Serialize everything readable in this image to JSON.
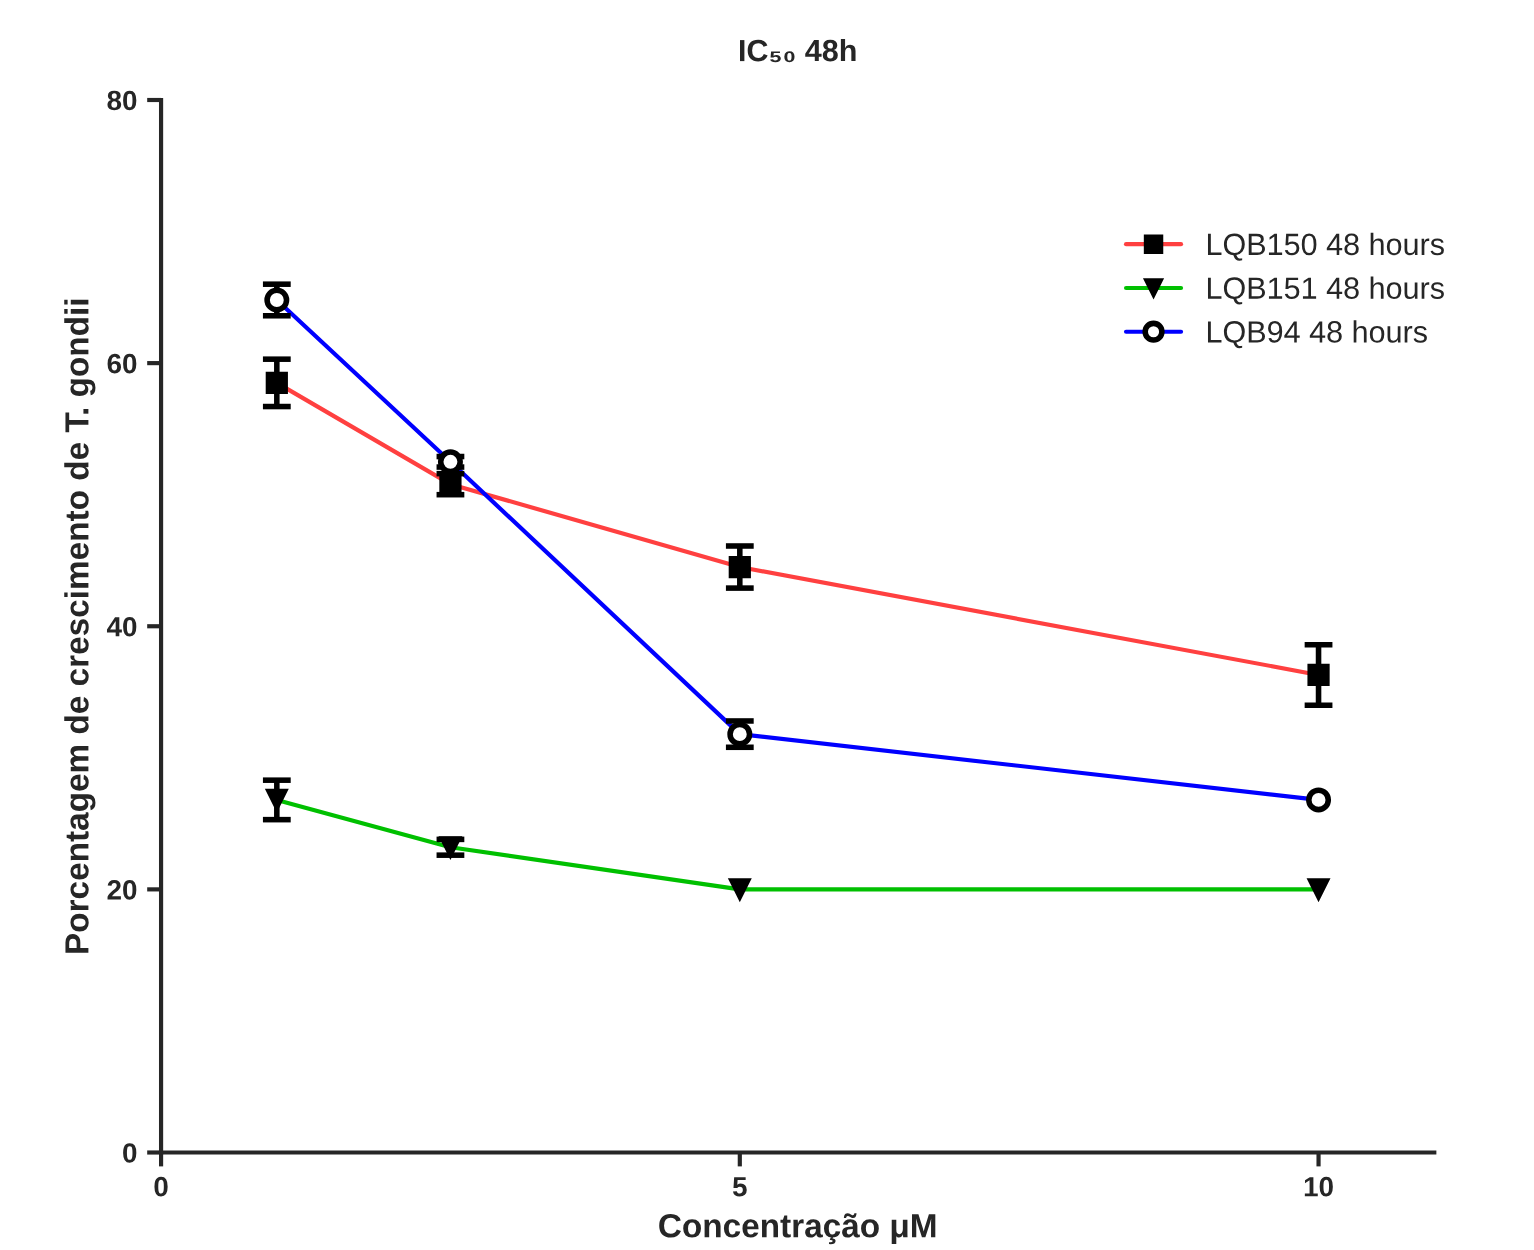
{
  "chart_data": {
    "type": "line",
    "title": "IC₅₀ 48h",
    "xlabel": "Concentração μM",
    "ylabel": "Porcentagem de crescimento de T. gondii",
    "x": [
      1,
      2.5,
      5,
      10
    ],
    "series": [
      {
        "name": "LQB150 48 hours",
        "color": "#ff4040",
        "marker": "square",
        "values": [
          58.5,
          50.8,
          44.5,
          36.3
        ],
        "errors": [
          1.8,
          0.8,
          1.6,
          2.3
        ]
      },
      {
        "name": "LQB151 48 hours",
        "color": "#00c000",
        "marker": "triangle",
        "values": [
          26.8,
          23.2,
          20.0,
          20.0
        ],
        "errors": [
          1.5,
          0.6,
          null,
          null
        ]
      },
      {
        "name": "LQB94 48 hours",
        "color": "#0000ff",
        "marker": "circle",
        "values": [
          64.8,
          52.5,
          31.8,
          26.8
        ],
        "errors": [
          1.2,
          0.4,
          1.0,
          null
        ]
      }
    ],
    "xlim": [
      0,
      11
    ],
    "xticks": [
      0,
      5,
      10
    ],
    "ylim": [
      0,
      80
    ],
    "yticks": [
      0,
      20,
      40,
      60,
      80
    ],
    "grid": false,
    "legend": "top right",
    "line_style": "solid"
  }
}
